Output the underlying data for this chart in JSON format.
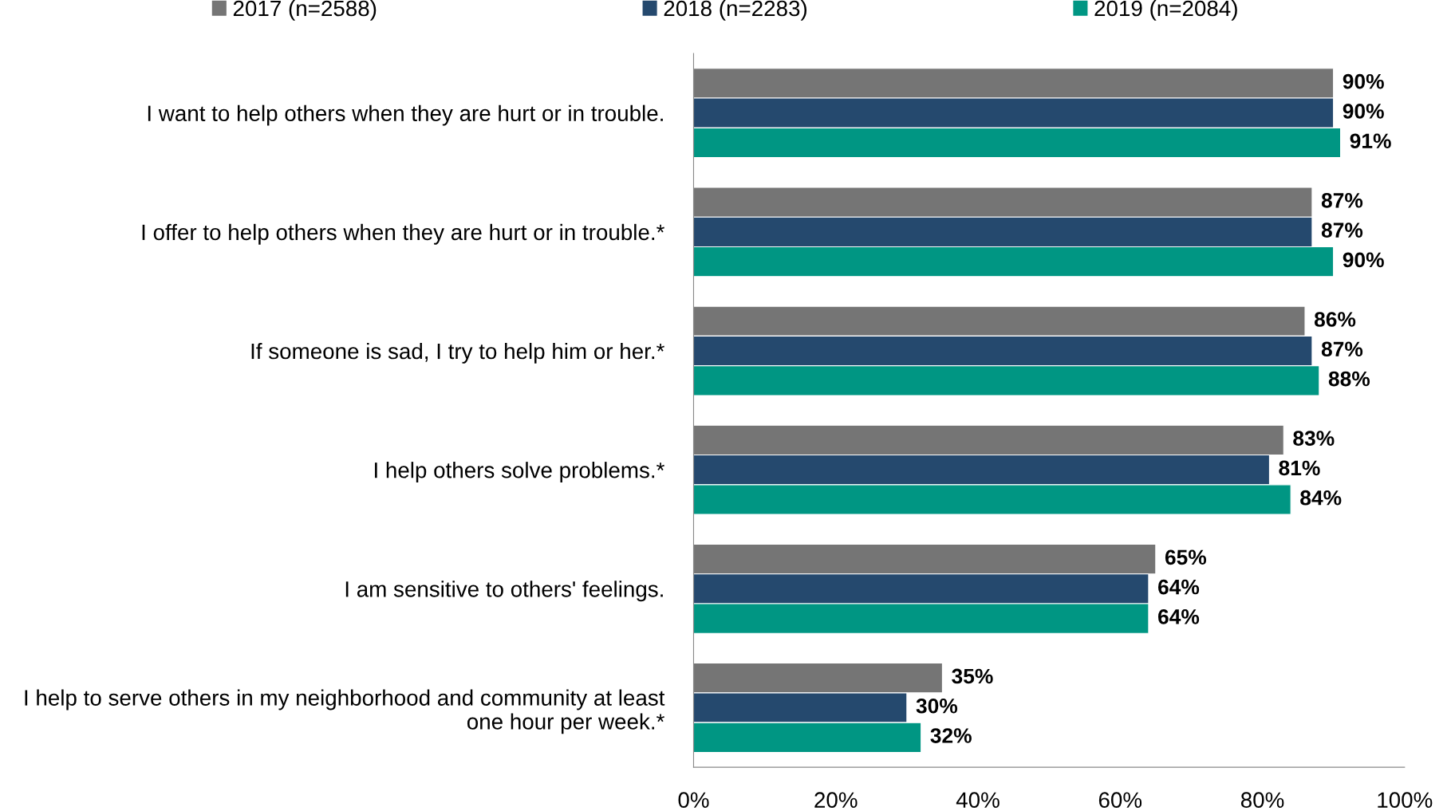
{
  "chart_data": {
    "type": "bar",
    "orientation": "horizontal",
    "categories": [
      "I want to help others when they are hurt or in trouble.",
      "I offer to help others when they are hurt or in trouble.*",
      "If someone is sad, I try to help him or her.*",
      "I help others solve problems.*",
      "I am sensitive to others' feelings.",
      "I help to serve others in my neighborhood and community at least\none hour per week.*"
    ],
    "series": [
      {
        "name": "2017 (n=2588)",
        "color": "#757575",
        "values": [
          90,
          87,
          86,
          83,
          65,
          35
        ],
        "value_labels": [
          "90%",
          "87%",
          "86%",
          "83%",
          "65%",
          "35%"
        ]
      },
      {
        "name": "2018 (n=2283)",
        "color": "#25496e",
        "values": [
          90,
          87,
          87,
          81,
          64,
          30
        ],
        "value_labels": [
          "90%",
          "87%",
          "87%",
          "81%",
          "64%",
          "30%"
        ]
      },
      {
        "name": "2019 (n=2084)",
        "color": "#009683",
        "values": [
          91,
          90,
          88,
          84,
          64,
          32
        ],
        "value_labels": [
          "91%",
          "90%",
          "88%",
          "84%",
          "64%",
          "32%"
        ]
      }
    ],
    "xlim": [
      0,
      100
    ],
    "xticks": [
      {
        "value": 0,
        "label": "0%"
      },
      {
        "value": 20,
        "label": "20%"
      },
      {
        "value": 40,
        "label": "40%"
      },
      {
        "value": 60,
        "label": "60%"
      },
      {
        "value": 80,
        "label": "80%"
      },
      {
        "value": 100,
        "label": "100%"
      }
    ],
    "grid": false,
    "legend": "top"
  }
}
